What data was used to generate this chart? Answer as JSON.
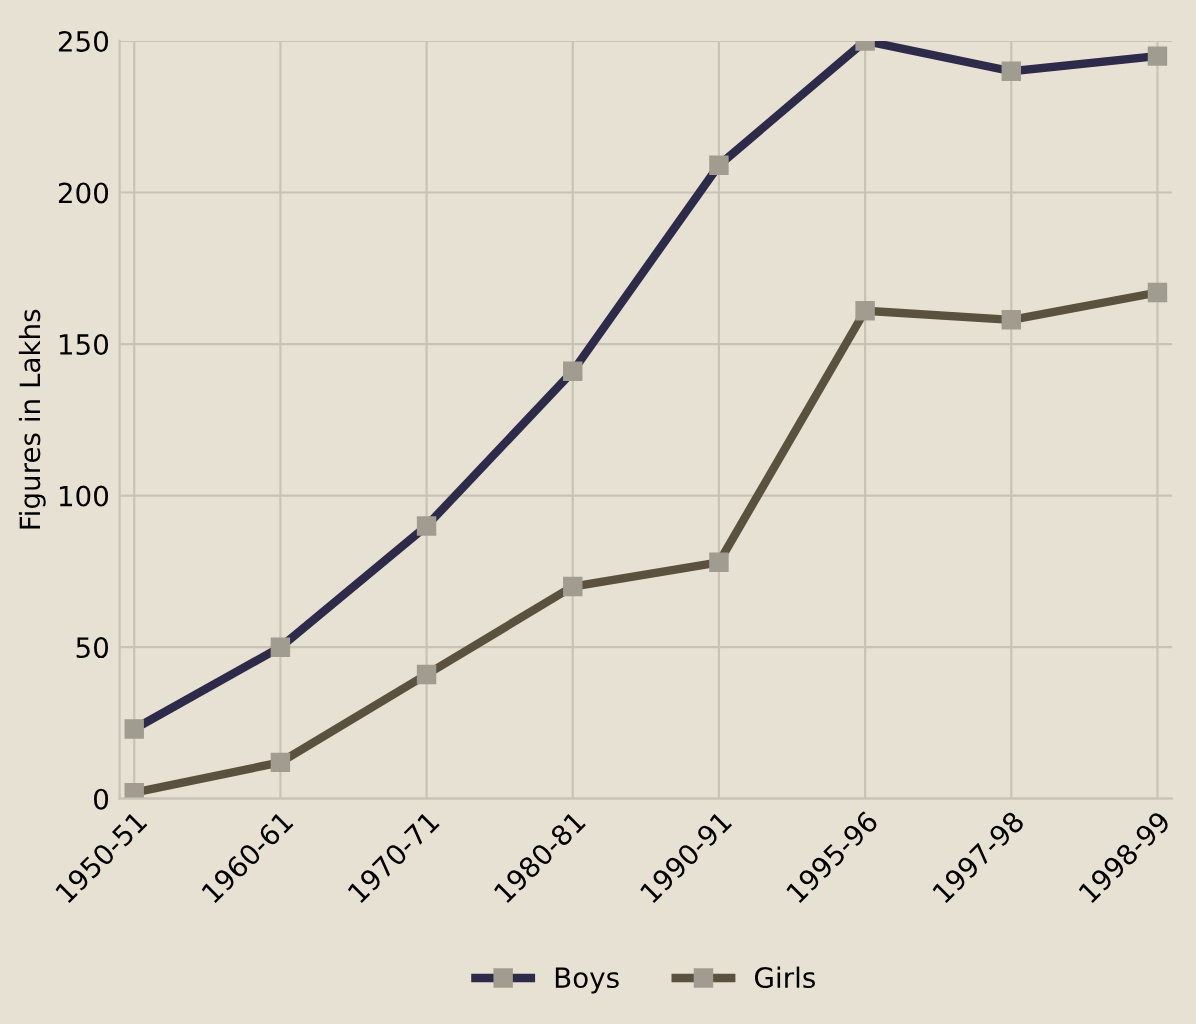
{
  "chart_data": {
    "type": "line",
    "ylabel": "Figures in Lakhs",
    "categories": [
      "1950-51",
      "1960-61",
      "1970-71",
      "1980-81",
      "1990-91",
      "1995-96",
      "1997-98",
      "1998-99"
    ],
    "series": [
      {
        "name": "Boys",
        "color": "#2e2a4a",
        "values": [
          23,
          50,
          90,
          141,
          209,
          250,
          240,
          245
        ]
      },
      {
        "name": "Girls",
        "color": "#5a523e",
        "values": [
          2,
          12,
          41,
          70,
          78,
          161,
          158,
          167
        ]
      }
    ],
    "ylim": [
      0,
      250
    ],
    "yticks": [
      0,
      50,
      100,
      150,
      200,
      250
    ],
    "grid": true,
    "legend": "bottom",
    "marker": "square",
    "line_style": "solid"
  }
}
